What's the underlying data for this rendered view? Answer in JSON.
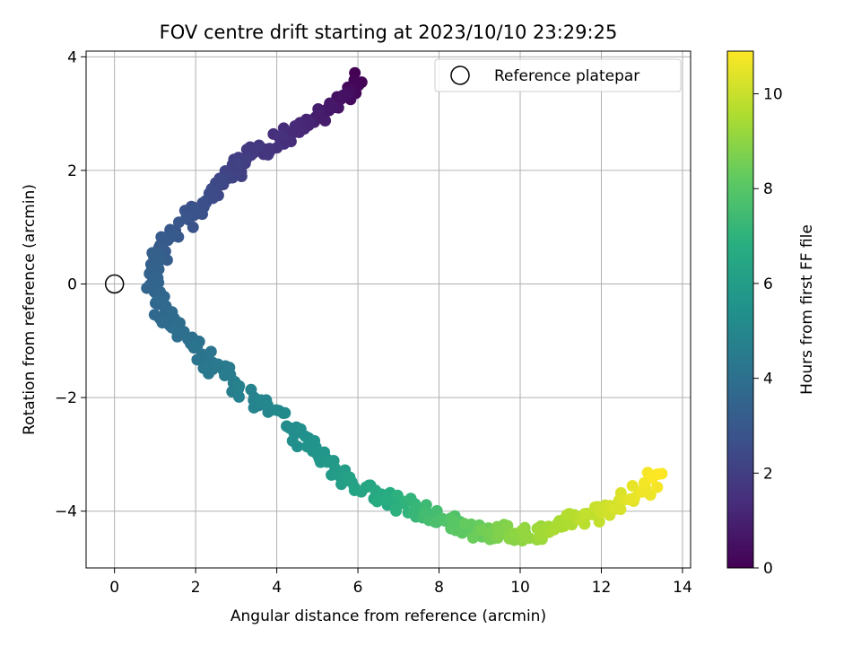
{
  "chart_data": {
    "type": "scatter",
    "title": "FOV centre drift starting at 2023/10/10 23:29:25",
    "xlabel": "Angular distance from reference (arcmin)",
    "ylabel": "Rotation from reference (arcmin)",
    "xlim": [
      -0.7,
      14.2
    ],
    "ylim": [
      -5.0,
      4.1
    ],
    "x_ticks": [
      0,
      2,
      4,
      6,
      8,
      10,
      12,
      14
    ],
    "x_tick_labels": [
      "0",
      "2",
      "4",
      "6",
      "8",
      "10",
      "12",
      "14"
    ],
    "y_ticks": [
      -4,
      -2,
      0,
      2,
      4
    ],
    "y_tick_labels": [
      "−4",
      "−2",
      "0",
      "2",
      "4"
    ],
    "grid": true,
    "legend": {
      "placement": "top-right",
      "entries": [
        "Reference platepar"
      ]
    },
    "reference_point": {
      "x": 0,
      "y": 0,
      "label": "Reference platepar"
    },
    "colorbar": {
      "label": "Hours from first FF file",
      "colormap": "viridis",
      "range": [
        0,
        10.9
      ],
      "ticks": [
        0,
        2,
        4,
        6,
        8,
        10
      ],
      "tick_labels": [
        "0",
        "2",
        "4",
        "6",
        "8",
        "10"
      ]
    },
    "series_path": [
      {
        "x": 6.1,
        "y": 3.6,
        "t": 0.0
      },
      {
        "x": 5.4,
        "y": 3.15,
        "t": 0.6
      },
      {
        "x": 4.7,
        "y": 2.85,
        "t": 1.1
      },
      {
        "x": 4.0,
        "y": 2.5,
        "t": 1.5
      },
      {
        "x": 3.3,
        "y": 2.2,
        "t": 1.9
      },
      {
        "x": 2.6,
        "y": 1.8,
        "t": 2.3
      },
      {
        "x": 2.0,
        "y": 1.3,
        "t": 2.7
      },
      {
        "x": 1.4,
        "y": 0.85,
        "t": 3.0
      },
      {
        "x": 1.0,
        "y": 0.4,
        "t": 3.3
      },
      {
        "x": 0.9,
        "y": 0.0,
        "t": 3.5
      },
      {
        "x": 1.2,
        "y": -0.5,
        "t": 3.7
      },
      {
        "x": 1.7,
        "y": -0.9,
        "t": 3.95
      },
      {
        "x": 2.3,
        "y": -1.35,
        "t": 4.25
      },
      {
        "x": 3.0,
        "y": -1.75,
        "t": 4.6
      },
      {
        "x": 3.8,
        "y": -2.2,
        "t": 5.0
      },
      {
        "x": 4.8,
        "y": -2.85,
        "t": 5.5
      },
      {
        "x": 5.6,
        "y": -3.35,
        "t": 6.0
      },
      {
        "x": 6.5,
        "y": -3.75,
        "t": 6.6
      },
      {
        "x": 7.4,
        "y": -3.95,
        "t": 7.2
      },
      {
        "x": 8.2,
        "y": -4.2,
        "t": 7.8
      },
      {
        "x": 9.0,
        "y": -4.35,
        "t": 8.4
      },
      {
        "x": 9.8,
        "y": -4.4,
        "t": 8.9
      },
      {
        "x": 10.6,
        "y": -4.35,
        "t": 9.3
      },
      {
        "x": 11.4,
        "y": -4.15,
        "t": 9.7
      },
      {
        "x": 12.2,
        "y": -3.95,
        "t": 10.1
      },
      {
        "x": 12.9,
        "y": -3.7,
        "t": 10.5
      },
      {
        "x": 13.4,
        "y": -3.35,
        "t": 10.9
      }
    ]
  }
}
